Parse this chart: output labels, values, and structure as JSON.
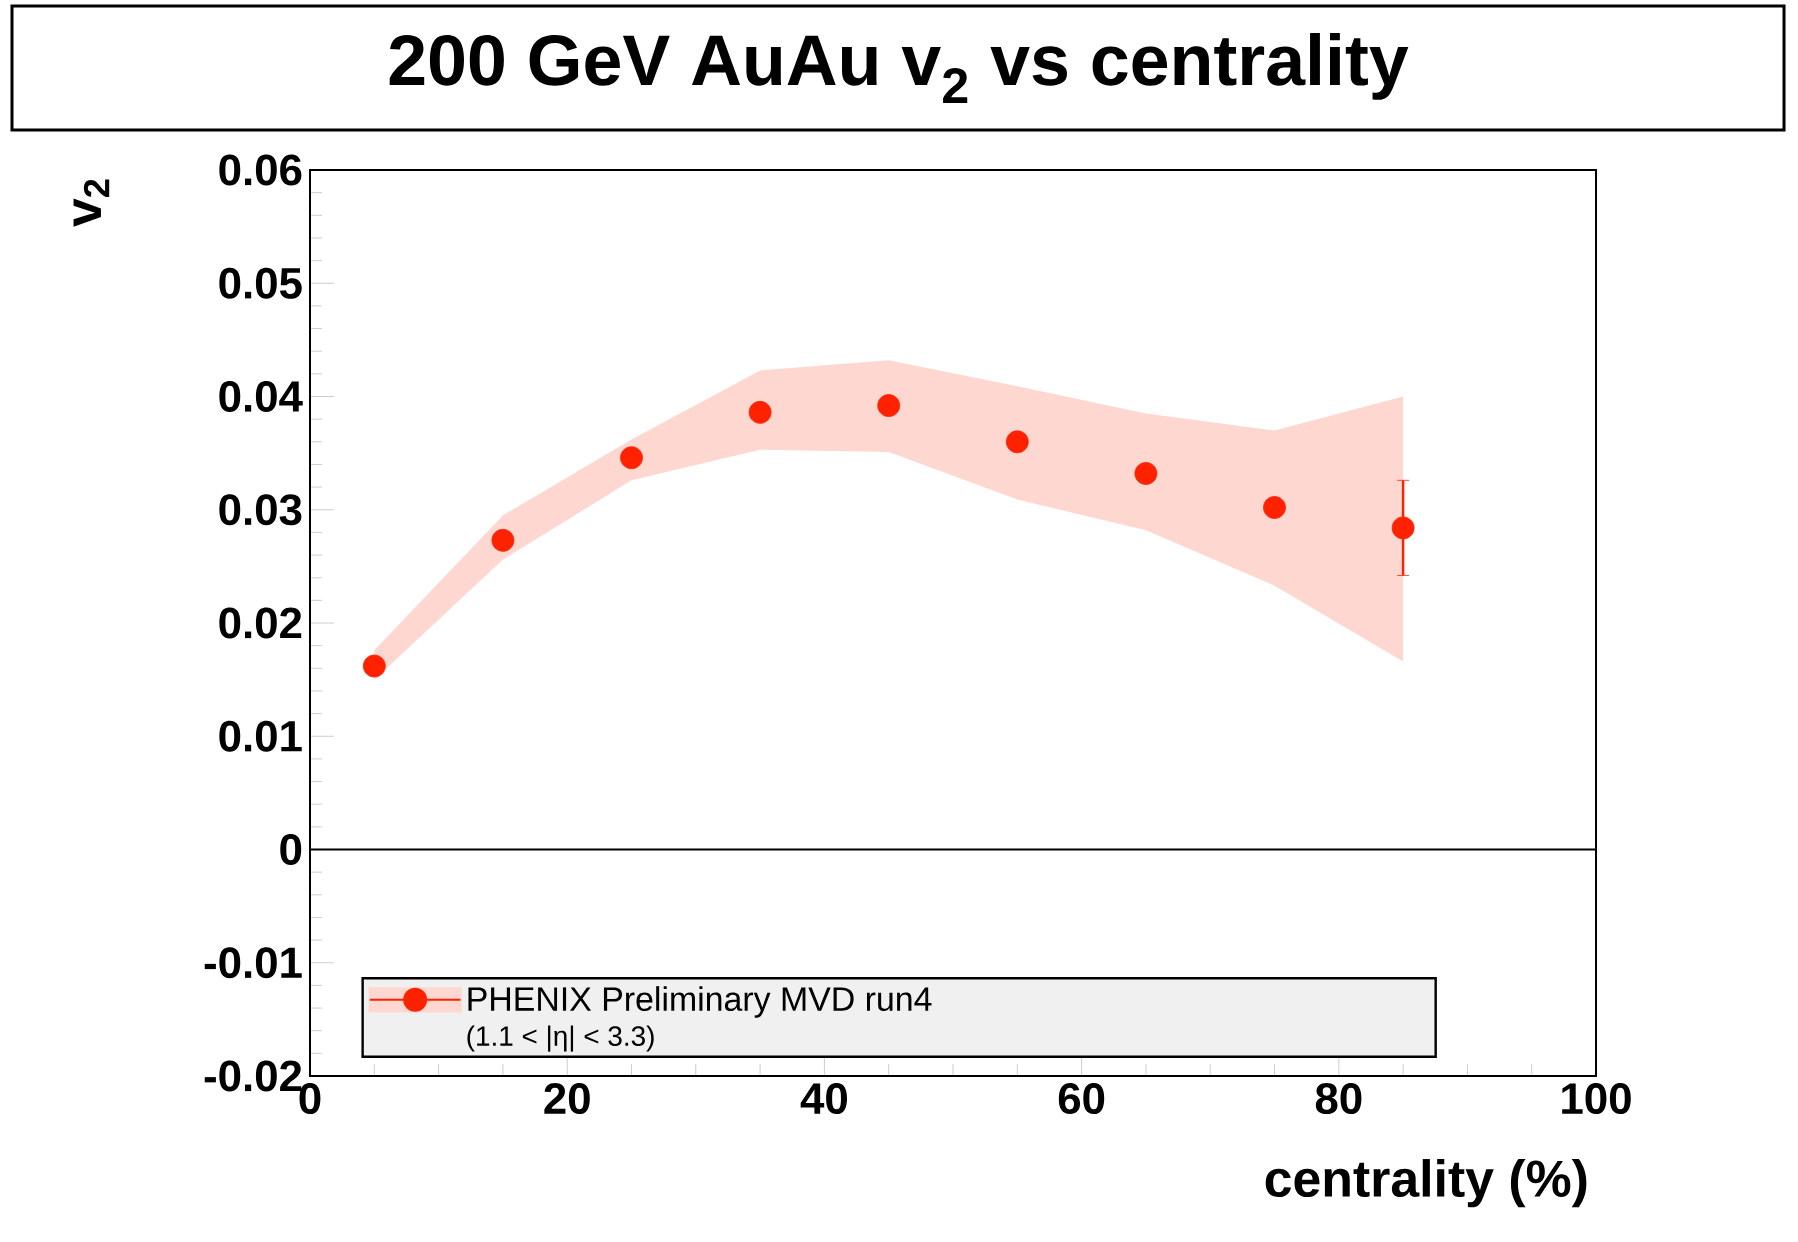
{
  "chart_data": {
    "type": "scatter",
    "title": "200 GeV AuAu v$_{2}$ vs centrality",
    "ylabel": "v$_{2}$",
    "xlabel": "centrality (%)",
    "x": [
      5,
      15,
      25,
      35,
      45,
      55,
      65,
      75,
      85
    ],
    "series": [
      {
        "name": "PHENIX Preliminary MVD run4",
        "color": "#ff2200",
        "values": [
          0.0162,
          0.0273,
          0.0346,
          0.0386,
          0.0392,
          0.036,
          0.0332,
          0.0302,
          0.0284
        ],
        "errors": [
          null,
          null,
          null,
          null,
          null,
          null,
          null,
          null,
          0.0042
        ],
        "lower": [
          0.015,
          0.0256,
          0.0326,
          0.0353,
          0.0351,
          0.0309,
          0.0282,
          0.0233,
          0.0166
        ],
        "upper": [
          0.0176,
          0.0295,
          0.0362,
          0.0423,
          0.0432,
          0.0409,
          0.0385,
          0.037,
          0.04
        ]
      }
    ],
    "annotations": [
      "(1.1 < |η| < 3.3)"
    ],
    "xlim": [
      0,
      100
    ],
    "ylim": [
      -0.02,
      0.06
    ],
    "xticks": [
      0,
      20,
      40,
      60,
      80,
      100
    ],
    "yticks": [
      -0.02,
      -0.01,
      0,
      0.01,
      0.02,
      0.03,
      0.04,
      0.05,
      0.06
    ],
    "ref_lines": [
      {
        "axis": "y",
        "value": 0
      }
    ],
    "legend": "bottom",
    "grid": false
  }
}
